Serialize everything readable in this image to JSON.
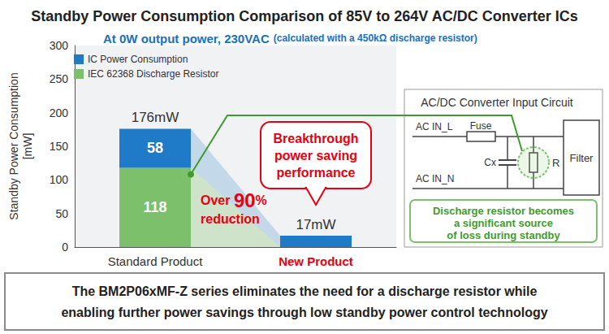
{
  "chart_data": {
    "type": "bar",
    "title": "Standby Power Consumption Comparison of 85V to 264V AC/DC Converter ICs",
    "subtitle": "At 0W output power, 230VAC",
    "subtitle_note": "(calculated with a 450kΩ discharge resistor)",
    "y_label": "Standby Power Consumption [mW]",
    "categories": [
      "Standard Product",
      "New Product"
    ],
    "series": [
      {
        "name": "IC Power Consumption",
        "color": "#1f7bc8",
        "values": [
          58,
          17
        ],
        "value_labels": [
          "58",
          "17mW"
        ]
      },
      {
        "name": "IEC 62368 Discharge Resistor",
        "color": "#7dc06b",
        "values": [
          118,
          null
        ]
      }
    ],
    "stacked": true,
    "data_labels": true,
    "legend": "upper left",
    "grid": false,
    "ylim": [
      0,
      300
    ],
    "yticks": [
      0,
      50,
      100,
      150,
      200,
      250,
      300
    ],
    "annotations": {
      "total": "176mW",
      "reduction": [
        "Over 90%",
        "reduction"
      ],
      "callout": [
        "Breakthrough",
        "power saving",
        "performance"
      ],
      "circuit": {
        "title": "AC/DC Converter Input Circuit",
        "line_in": "AC IN_L",
        "neutral_in": "AC IN_N",
        "fuse": "Fuse",
        "capacitor": "Cx",
        "resistor": "R",
        "filter": "Filter",
        "note": [
          "Discharge resistor becomes",
          "a significant source",
          "of loss during standby"
        ]
      },
      "footer": [
        "The BM2P06xMF-Z series eliminates the need for a discharge resistor while",
        "enabling further power savings through low standby power control technology"
      ]
    }
  }
}
